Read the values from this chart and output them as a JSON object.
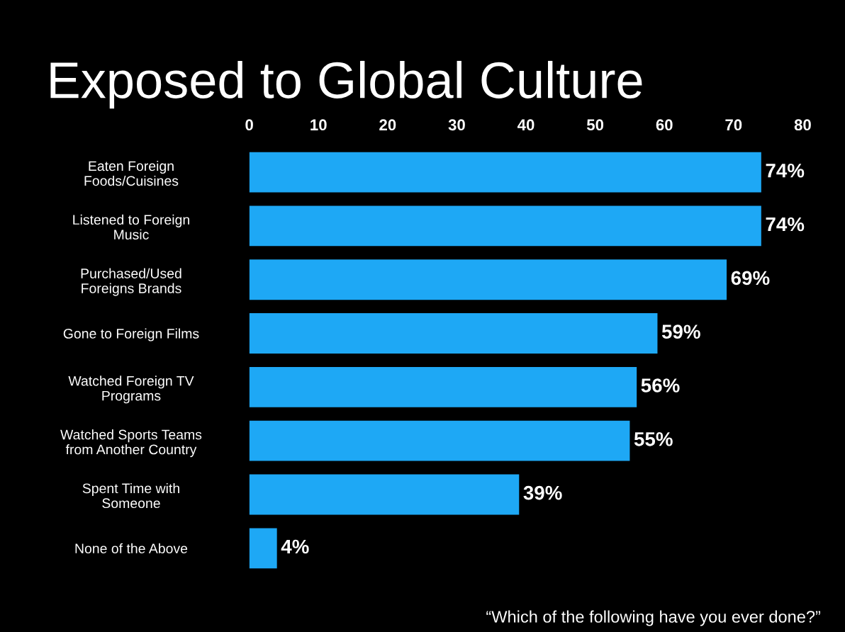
{
  "chart_data": {
    "type": "bar",
    "orientation": "horizontal",
    "title": "Exposed to Global Culture",
    "categories": [
      "Eaten Foreign\nFoods/Cuisines",
      "Listened to Foreign\nMusic",
      "Purchased/Used\nForeigns Brands",
      "Gone to Foreign Films",
      "Watched Foreign TV\nPrograms",
      "Watched Sports Teams\nfrom Another Country",
      "Spent Time with\nSomeone",
      "None of the Above"
    ],
    "values": [
      74,
      74,
      69,
      59,
      56,
      55,
      39,
      4
    ],
    "value_labels": [
      "74%",
      "74%",
      "69%",
      "59%",
      "56%",
      "55%",
      "39%",
      "4%"
    ],
    "color": "#1ea8f5",
    "xlim": [
      0,
      80
    ],
    "xticks": [
      0,
      10,
      20,
      30,
      40,
      50,
      60,
      70,
      80
    ],
    "grid": false,
    "annotations": [
      "“Which of the following have you ever done?”"
    ]
  }
}
